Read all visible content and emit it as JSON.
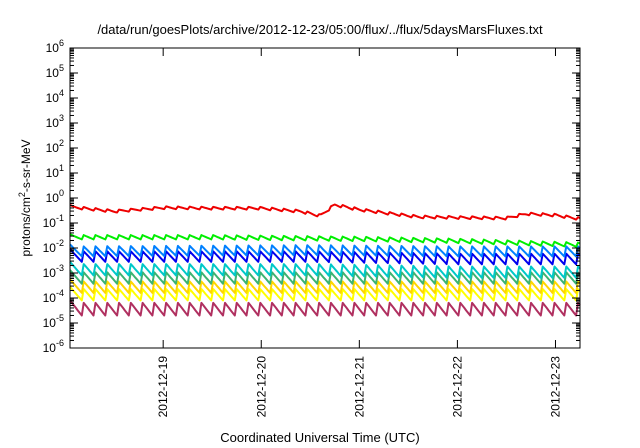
{
  "chart_data": {
    "type": "line",
    "title": "/data/run/goesPlots/archive/2012-12-23/05:00/flux/../flux/5daysMarsFluxes.txt",
    "xlabel": "Coordinated Universal Time (UTC)",
    "ylabel": "protons/cm²-s-sr-MeV",
    "y_scale": "log",
    "ylim_exponents": [
      -6,
      6
    ],
    "ytick_exponents": [
      -6,
      -5,
      -4,
      -3,
      -2,
      -1,
      0,
      1,
      2,
      3,
      4,
      5,
      6
    ],
    "xticks": [
      {
        "label": "2012-12-19",
        "day": 18.0
      },
      {
        "label": "2012-12-20",
        "day": 19.0
      },
      {
        "label": "2012-12-21",
        "day": 20.0
      },
      {
        "label": "2012-12-22",
        "day": 21.0
      },
      {
        "label": "2012-12-23",
        "day": 22.0
      }
    ],
    "x_range_days": [
      17.05,
      22.25
    ],
    "x_reference": "2012-12-01 00:00 UTC",
    "grid": false,
    "legend": "none",
    "series": [
      {
        "color": "#ee0000",
        "kind": "red",
        "points": [
          [
            17.05,
            0.6
          ],
          [
            17.2,
            0.43
          ],
          [
            17.4,
            0.34
          ],
          [
            17.55,
            0.3
          ],
          [
            17.7,
            0.29
          ],
          [
            17.85,
            0.33
          ],
          [
            18.0,
            0.42
          ],
          [
            18.15,
            0.48
          ],
          [
            18.3,
            0.45
          ],
          [
            18.5,
            0.4
          ],
          [
            18.7,
            0.38
          ],
          [
            18.9,
            0.4
          ],
          [
            19.0,
            0.42
          ],
          [
            19.2,
            0.38
          ],
          [
            19.4,
            0.32
          ],
          [
            19.55,
            0.24
          ],
          [
            19.7,
            0.19
          ],
          [
            19.85,
            0.2
          ],
          [
            19.95,
            0.25
          ],
          [
            20.05,
            0.28
          ],
          [
            19.6,
            0.22
          ],
          [
            19.75,
            0.6
          ],
          [
            19.9,
            0.48
          ],
          [
            20.05,
            0.38
          ],
          [
            20.2,
            0.32
          ],
          [
            20.35,
            0.26
          ],
          [
            20.5,
            0.2
          ],
          [
            20.7,
            0.18
          ],
          [
            20.9,
            0.17
          ],
          [
            21.1,
            0.17
          ],
          [
            21.3,
            0.16
          ],
          [
            21.5,
            0.16
          ],
          [
            21.6,
            0.2
          ],
          [
            21.75,
            0.25
          ],
          [
            21.9,
            0.24
          ],
          [
            22.05,
            0.22
          ],
          [
            22.15,
            0.18
          ],
          [
            22.25,
            0.15
          ]
        ],
        "sawtooth": {
          "base": [
            [
              17.05,
              0.45
            ],
            [
              17.5,
              0.3
            ],
            [
              18.0,
              0.42
            ],
            [
              18.5,
              0.4
            ],
            [
              19.0,
              0.4
            ],
            [
              19.4,
              0.3
            ],
            [
              19.6,
              0.2
            ],
            [
              19.75,
              0.55
            ],
            [
              20.0,
              0.35
            ],
            [
              20.3,
              0.25
            ],
            [
              20.6,
              0.18
            ],
            [
              21.0,
              0.17
            ],
            [
              21.5,
              0.16
            ],
            [
              21.7,
              0.24
            ],
            [
              22.0,
              0.21
            ],
            [
              22.25,
              0.15
            ]
          ],
          "amp": 1.35,
          "period": 0.12
        }
      },
      {
        "color": "#00ee00",
        "kind": "green",
        "level": 0.022,
        "amp": 1.6,
        "period": 0.12,
        "trend": [
          [
            17.05,
            0.028
          ],
          [
            18.5,
            0.028
          ],
          [
            20.0,
            0.024
          ],
          [
            21.0,
            0.02
          ],
          [
            22.25,
            0.014
          ]
        ]
      },
      {
        "color": "#0080ff",
        "kind": "lightblue",
        "level": 0.006,
        "amp": 3.0,
        "period": 0.12,
        "trend": [
          [
            17.05,
            0.008
          ],
          [
            19.5,
            0.009
          ],
          [
            21.0,
            0.008
          ],
          [
            22.25,
            0.008
          ]
        ]
      },
      {
        "color": "#0000ee",
        "kind": "blue",
        "level": 0.0035,
        "amp": 3.2,
        "period": 0.12,
        "trend": [
          [
            17.05,
            0.005
          ],
          [
            19.5,
            0.005
          ],
          [
            21.0,
            0.004
          ],
          [
            22.25,
            0.004
          ]
        ]
      },
      {
        "color": "#00c8c8",
        "kind": "cyan",
        "level": 0.0012,
        "amp": 3.5,
        "period": 0.12,
        "trend": [
          [
            17.05,
            0.0015
          ],
          [
            19.5,
            0.0015
          ],
          [
            21.0,
            0.0012
          ],
          [
            22.25,
            0.0012
          ]
        ]
      },
      {
        "color": "#3cb371",
        "kind": "seagreen",
        "level": 0.0006,
        "amp": 3.5,
        "period": 0.12,
        "trend": [
          [
            17.05,
            0.0007
          ],
          [
            22.25,
            0.0007
          ]
        ]
      },
      {
        "color": "#ffd700",
        "kind": "gold",
        "level": 0.00025,
        "amp": 3.5,
        "period": 0.12,
        "trend": [
          [
            17.05,
            0.0003
          ],
          [
            22.25,
            0.0003
          ]
        ]
      },
      {
        "color": "#ffff00",
        "kind": "yellow",
        "level": 0.00012,
        "amp": 3.5,
        "period": 0.12,
        "trend": [
          [
            17.05,
            0.00015
          ],
          [
            22.25,
            0.00015
          ]
        ]
      },
      {
        "color": "#b03060",
        "kind": "maroon",
        "level": 3e-05,
        "amp": 4.0,
        "period": 0.12,
        "trend": [
          [
            17.05,
            4e-05
          ],
          [
            22.25,
            4e-05
          ]
        ]
      }
    ]
  }
}
